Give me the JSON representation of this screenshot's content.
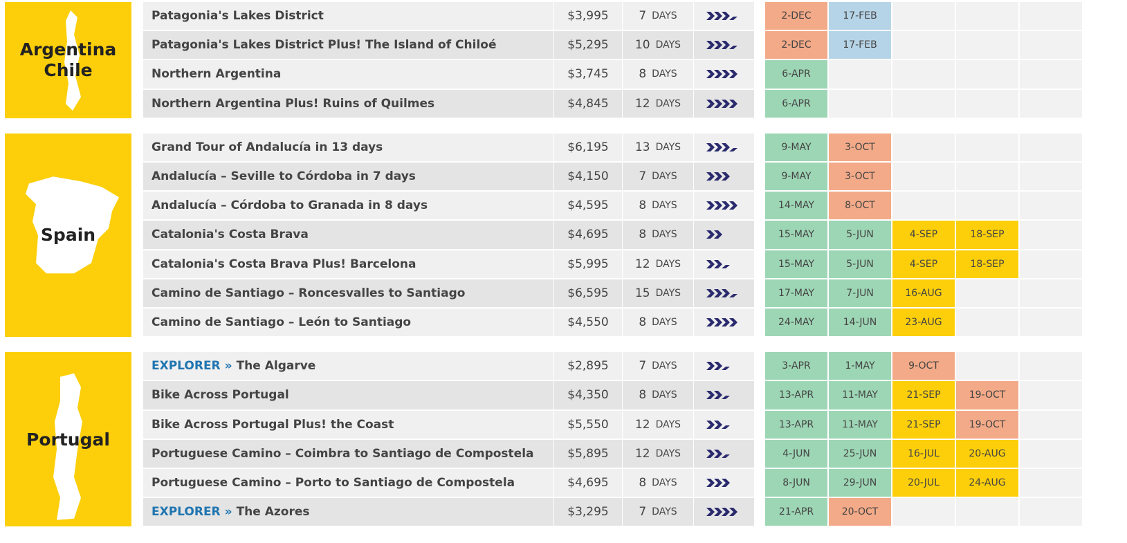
{
  "days_unit": "DAYS",
  "groups": [
    {
      "region": [
        "Argentina",
        "Chile"
      ],
      "rows": [
        {
          "name": "Patagonia's Lakes District",
          "price": "$3,995",
          "days": 7,
          "activity": 3.5,
          "dates": [
            {
              "label": "2-DEC",
              "color": "#f3aa88"
            },
            {
              "label": "17-FEB",
              "color": "#b6d4e7"
            }
          ]
        },
        {
          "name": "Patagonia's Lakes District Plus! The Island of Chiloé",
          "price": "$5,295",
          "days": 10,
          "activity": 3.5,
          "dates": [
            {
              "label": "2-DEC",
              "color": "#f3aa88"
            },
            {
              "label": "17-FEB",
              "color": "#b6d4e7"
            }
          ]
        },
        {
          "name": "Northern Argentina",
          "price": "$3,745",
          "days": 8,
          "activity": 4,
          "dates": [
            {
              "label": "6-APR",
              "color": "#9dd6b5"
            }
          ]
        },
        {
          "name": "Northern Argentina Plus! Ruins of Quilmes",
          "price": "$4,845",
          "days": 12,
          "activity": 4,
          "dates": [
            {
              "label": "6-APR",
              "color": "#9dd6b5"
            }
          ]
        }
      ]
    },
    {
      "region": [
        "Spain"
      ],
      "rows": [
        {
          "name": "Grand Tour of Andalucía in 13 days",
          "price": "$6,195",
          "days": 13,
          "activity": 3.5,
          "dates": [
            {
              "label": "9-MAY",
              "color": "#9dd6b5"
            },
            {
              "label": "3-OCT",
              "color": "#f3aa88"
            }
          ]
        },
        {
          "name": "Andalucía – Seville to Córdoba in 7 days",
          "price": "$4,150",
          "days": 7,
          "activity": 3,
          "dates": [
            {
              "label": "9-MAY",
              "color": "#9dd6b5"
            },
            {
              "label": "3-OCT",
              "color": "#f3aa88"
            }
          ]
        },
        {
          "name": "Andalucía – Córdoba to Granada in 8 days",
          "price": "$4,595",
          "days": 8,
          "activity": 4,
          "dates": [
            {
              "label": "14-MAY",
              "color": "#9dd6b5"
            },
            {
              "label": "8-OCT",
              "color": "#f3aa88"
            }
          ]
        },
        {
          "name": "Catalonia's Costa Brava",
          "price": "$4,695",
          "days": 8,
          "activity": 2,
          "dates": [
            {
              "label": "15-MAY",
              "color": "#9dd6b5"
            },
            {
              "label": "5-JUN",
              "color": "#9dd6b5"
            },
            {
              "label": "4-SEP",
              "color": "#fccf0a"
            },
            {
              "label": "18-SEP",
              "color": "#fccf0a"
            }
          ]
        },
        {
          "name": "Catalonia's Costa Brava Plus! Barcelona",
          "price": "$5,995",
          "days": 12,
          "activity": 2.5,
          "dates": [
            {
              "label": "15-MAY",
              "color": "#9dd6b5"
            },
            {
              "label": "5-JUN",
              "color": "#9dd6b5"
            },
            {
              "label": "4-SEP",
              "color": "#fccf0a"
            },
            {
              "label": "18-SEP",
              "color": "#fccf0a"
            }
          ]
        },
        {
          "name": "Camino de Santiago – Roncesvalles to Santiago",
          "price": "$6,595",
          "days": 15,
          "activity": 3.5,
          "dates": [
            {
              "label": "17-MAY",
              "color": "#9dd6b5"
            },
            {
              "label": "7-JUN",
              "color": "#9dd6b5"
            },
            {
              "label": "16-AUG",
              "color": "#fccf0a"
            }
          ]
        },
        {
          "name": "Camino de Santiago – León to Santiago",
          "price": "$4,550",
          "days": 8,
          "activity": 4,
          "dates": [
            {
              "label": "24-MAY",
              "color": "#9dd6b5"
            },
            {
              "label": "14-JUN",
              "color": "#9dd6b5"
            },
            {
              "label": "23-AUG",
              "color": "#fccf0a"
            }
          ]
        }
      ]
    },
    {
      "region": [
        "Portugal"
      ],
      "rows": [
        {
          "prefix": "EXPLORER »",
          "name": "The Algarve",
          "price": "$2,895",
          "days": 7,
          "activity": 2.5,
          "dates": [
            {
              "label": "3-APR",
              "color": "#9dd6b5"
            },
            {
              "label": "1-MAY",
              "color": "#9dd6b5"
            },
            {
              "label": "9-OCT",
              "color": "#f3aa88"
            }
          ]
        },
        {
          "name": "Bike Across Portugal",
          "price": "$4,350",
          "days": 8,
          "activity": 2.5,
          "dates": [
            {
              "label": "13-APR",
              "color": "#9dd6b5"
            },
            {
              "label": "11-MAY",
              "color": "#9dd6b5"
            },
            {
              "label": "21-SEP",
              "color": "#fccf0a"
            },
            {
              "label": "19-OCT",
              "color": "#f3aa88"
            }
          ]
        },
        {
          "name": "Bike Across Portugal Plus! the Coast",
          "price": "$5,550",
          "days": 12,
          "activity": 2.5,
          "dates": [
            {
              "label": "13-APR",
              "color": "#9dd6b5"
            },
            {
              "label": "11-MAY",
              "color": "#9dd6b5"
            },
            {
              "label": "21-SEP",
              "color": "#fccf0a"
            },
            {
              "label": "19-OCT",
              "color": "#f3aa88"
            }
          ]
        },
        {
          "name": "Portuguese Camino – Coimbra to Santiago de Compostela",
          "price": "$5,895",
          "days": 12,
          "activity": 2.5,
          "dates": [
            {
              "label": "4-JUN",
              "color": "#9dd6b5"
            },
            {
              "label": "25-JUN",
              "color": "#9dd6b5"
            },
            {
              "label": "16-JUL",
              "color": "#fccf0a"
            },
            {
              "label": "20-AUG",
              "color": "#fccf0a"
            }
          ]
        },
        {
          "name": "Portuguese Camino – Porto to Santiago de Compostela",
          "price": "$4,695",
          "days": 8,
          "activity": 3,
          "dates": [
            {
              "label": "8-JUN",
              "color": "#9dd6b5"
            },
            {
              "label": "29-JUN",
              "color": "#9dd6b5"
            },
            {
              "label": "20-JUL",
              "color": "#fccf0a"
            },
            {
              "label": "24-AUG",
              "color": "#fccf0a"
            }
          ]
        },
        {
          "prefix": "EXPLORER »",
          "name": "The Azores",
          "price": "$3,295",
          "days": 7,
          "activity": 4,
          "dates": [
            {
              "label": "21-APR",
              "color": "#9dd6b5"
            },
            {
              "label": "20-OCT",
              "color": "#f3aa88"
            }
          ]
        }
      ]
    }
  ]
}
